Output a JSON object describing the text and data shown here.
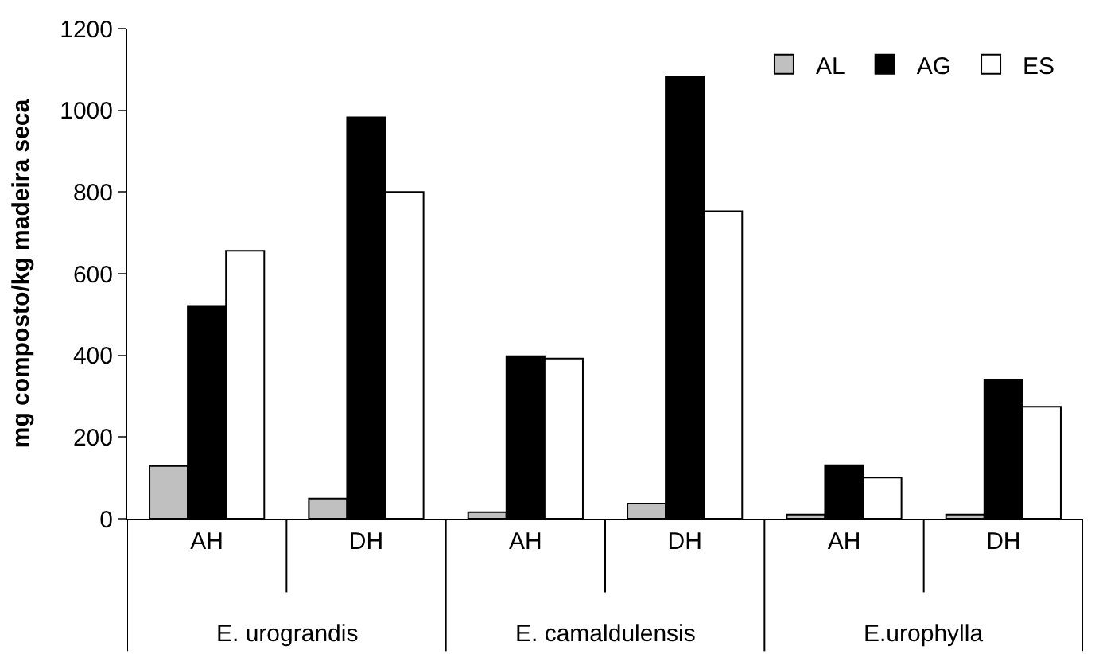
{
  "chart_data": {
    "type": "bar",
    "ylabel": "mg composto/kg madeira seca",
    "categories": [
      "AH",
      "DH",
      "AH",
      "DH",
      "AH",
      "DH"
    ],
    "annotations": [
      "E. urograndis",
      "E. camaldulensis",
      "E.urophylla"
    ],
    "series": [
      {
        "name": "AL",
        "color": "#c0c0c0",
        "values": [
          129,
          49,
          16,
          37,
          10,
          10
        ]
      },
      {
        "name": "AG",
        "color": "#000000",
        "values": [
          521,
          983,
          398,
          1083,
          131,
          341
        ]
      },
      {
        "name": "ES",
        "color": "#ffffff",
        "values": [
          656,
          800,
          392,
          753,
          101,
          274
        ]
      }
    ],
    "ylim": [
      0,
      1200
    ],
    "yticks": [
      0,
      200,
      400,
      600,
      800,
      1000,
      1200
    ],
    "legend": "top right"
  }
}
